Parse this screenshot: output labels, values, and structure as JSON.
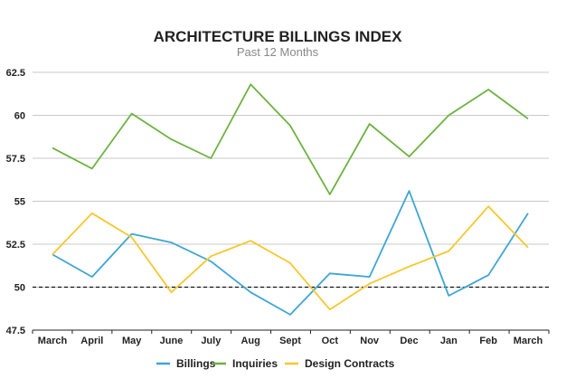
{
  "chart_data": {
    "type": "line",
    "title": "ARCHITECTURE BILLINGS INDEX",
    "subtitle": "Past 12 Months",
    "categories": [
      "March",
      "April",
      "May",
      "June",
      "July",
      "Aug",
      "Sept",
      "Oct",
      "Nov",
      "Dec",
      "Jan",
      "Feb",
      "March"
    ],
    "ylim": [
      47.5,
      62.5
    ],
    "yticks": [
      47.5,
      50,
      52.5,
      55,
      57.5,
      60,
      62.5
    ],
    "ytick_labels": [
      "47.5",
      "50",
      "52.5",
      "55",
      "57.5",
      "60",
      "62.5"
    ],
    "grid": true,
    "reference_line": {
      "value": 50,
      "style": "dashed"
    },
    "legend_position": "bottom",
    "series": [
      {
        "name": "Billings",
        "color": "#3ea6d3",
        "values": [
          51.9,
          50.6,
          53.1,
          52.6,
          51.5,
          49.7,
          48.4,
          50.8,
          50.6,
          55.6,
          49.5,
          50.7,
          54.3
        ]
      },
      {
        "name": "Inquiries",
        "color": "#6db33f",
        "values": [
          58.1,
          56.9,
          60.1,
          58.6,
          57.5,
          61.8,
          59.4,
          55.4,
          59.5,
          57.6,
          60.0,
          61.5,
          59.8
        ]
      },
      {
        "name": "Design Contracts",
        "color": "#f7c72b",
        "values": [
          51.9,
          54.3,
          52.9,
          49.7,
          51.8,
          52.7,
          51.4,
          48.7,
          50.2,
          51.2,
          52.1,
          54.7,
          52.3
        ]
      }
    ]
  }
}
